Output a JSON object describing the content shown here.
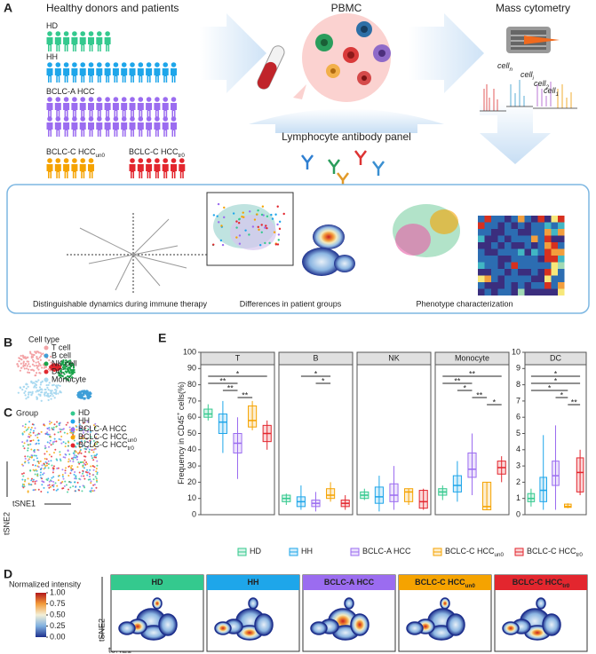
{
  "groups": [
    {
      "name": "HD",
      "color": "#34c98e"
    },
    {
      "name": "HH",
      "color": "#1ea6ea"
    },
    {
      "name": "BCLC-A HCC",
      "color": "#9b6cf0"
    },
    {
      "name": "BCLC-C HCC",
      "sub": "un0",
      "color": "#f5a300"
    },
    {
      "name": "BCLC-C HCC",
      "sub": "tr0",
      "color": "#e3262e"
    }
  ],
  "panel_a": {
    "label": "A",
    "cohort_title": "Healthy donors and patients",
    "pbmc": "PBMC",
    "mass_cytometry": "Mass cytometry",
    "antibody_panel": "Lymphocyte antibody panel",
    "cells": [
      {
        "text": "cell",
        "sub": "n"
      },
      {
        "text": "cell",
        "sub": "i"
      },
      {
        "text": "cell",
        "sub": "2"
      },
      {
        "text": "cell",
        "sub": "1"
      }
    ],
    "captions": [
      "Distinguishable dynamics during immune therapy",
      "Differences in patient groups",
      "Phenotype characterization"
    ]
  },
  "panel_b": {
    "label": "B",
    "legend_title": "Cell type",
    "items": [
      {
        "name": "T cell",
        "color": "#f3a3a6"
      },
      {
        "name": "B cell",
        "color": "#3f9fd8"
      },
      {
        "name": "NK cell",
        "color": "#1aa34a"
      },
      {
        "name": "DC",
        "color": "#e0282e"
      },
      {
        "name": "Monocyte",
        "color": "#a9d9f0"
      }
    ]
  },
  "panel_c": {
    "label": "C",
    "legend_title": "Group",
    "x_label": "tSNE1",
    "y_label": "tSNE2"
  },
  "panel_d": {
    "label": "D",
    "colorbar_title": "Normalized intensity",
    "colorbar_ticks": [
      {
        "value": 1,
        "label": "1.00"
      },
      {
        "value": 0.75,
        "label": "0.75"
      },
      {
        "value": 0.5,
        "label": "0.50"
      },
      {
        "value": 0.25,
        "label": "0.25"
      },
      {
        "value": 0,
        "label": "0.00"
      }
    ],
    "x_label": "tSNE1",
    "y_label": "tSNE2"
  },
  "panel_e": {
    "label": "E",
    "y_label": [
      "Frequency in CD45",
      "+",
      " cells(%)"
    ]
  },
  "chart_data": [
    {
      "type": "box",
      "title": "T",
      "ylim": [
        0,
        100
      ],
      "yticks": [
        0,
        10,
        20,
        30,
        40,
        50,
        60,
        70,
        80,
        90,
        100
      ],
      "boxes": [
        {
          "median": 62,
          "q1": 60,
          "q3": 65,
          "low": 58,
          "high": 68
        },
        {
          "median": 57,
          "q1": 50,
          "q3": 62,
          "low": 38,
          "high": 70
        },
        {
          "median": 44,
          "q1": 38,
          "q3": 50,
          "low": 22,
          "high": 60
        },
        {
          "median": 58,
          "q1": 54,
          "q3": 67,
          "low": 52,
          "high": 70
        },
        {
          "median": 50,
          "q1": 45,
          "q3": 55,
          "low": 40,
          "high": 58
        }
      ],
      "comparisons": [
        {
          "a": 0,
          "b": 4,
          "label": "*"
        },
        {
          "a": 0,
          "b": 2,
          "label": "**"
        },
        {
          "a": 1,
          "b": 2,
          "label": "**"
        },
        {
          "a": 2,
          "b": 3,
          "label": "**"
        }
      ]
    },
    {
      "type": "box",
      "title": "B",
      "ylim": [
        0,
        100
      ],
      "boxes": [
        {
          "median": 10,
          "q1": 8,
          "q3": 12,
          "low": 6,
          "high": 13
        },
        {
          "median": 8,
          "q1": 5,
          "q3": 11,
          "low": 3,
          "high": 18
        },
        {
          "median": 7,
          "q1": 5,
          "q3": 9,
          "low": 2,
          "high": 14
        },
        {
          "median": 12,
          "q1": 10,
          "q3": 16,
          "low": 8,
          "high": 20
        },
        {
          "median": 7,
          "q1": 5,
          "q3": 9,
          "low": 3,
          "high": 12
        }
      ],
      "comparisons": [
        {
          "a": 1,
          "b": 3,
          "label": "*"
        },
        {
          "a": 2,
          "b": 3,
          "label": "*"
        }
      ]
    },
    {
      "type": "box",
      "title": "NK",
      "ylim": [
        0,
        100
      ],
      "boxes": [
        {
          "median": 12,
          "q1": 10,
          "q3": 14,
          "low": 9,
          "high": 16
        },
        {
          "median": 11,
          "q1": 7,
          "q3": 17,
          "low": 2,
          "high": 24
        },
        {
          "median": 12,
          "q1": 8,
          "q3": 19,
          "low": 3,
          "high": 30
        },
        {
          "median": 14,
          "q1": 8,
          "q3": 16,
          "low": 6,
          "high": 16
        },
        {
          "median": 8,
          "q1": 4,
          "q3": 15,
          "low": 3,
          "high": 16
        }
      ],
      "comparisons": []
    },
    {
      "type": "box",
      "title": "Monocyte",
      "ylim": [
        0,
        100
      ],
      "boxes": [
        {
          "median": 14,
          "q1": 12,
          "q3": 16,
          "low": 9,
          "high": 18
        },
        {
          "median": 18,
          "q1": 14,
          "q3": 24,
          "low": 8,
          "high": 33
        },
        {
          "median": 28,
          "q1": 23,
          "q3": 38,
          "low": 12,
          "high": 50
        },
        {
          "median": 5,
          "q1": 3,
          "q3": 20,
          "low": 3,
          "high": 20
        },
        {
          "median": 29,
          "q1": 25,
          "q3": 33,
          "low": 20,
          "high": 36
        }
      ],
      "comparisons": [
        {
          "a": 0,
          "b": 4,
          "label": "**"
        },
        {
          "a": 0,
          "b": 2,
          "label": "**"
        },
        {
          "a": 1,
          "b": 2,
          "label": "*"
        },
        {
          "a": 2,
          "b": 3,
          "label": "**"
        },
        {
          "a": 3,
          "b": 4,
          "label": "*"
        }
      ]
    },
    {
      "type": "box",
      "title": "DC",
      "ylim": [
        0,
        10
      ],
      "yticks": [
        0,
        1,
        2,
        3,
        4,
        5,
        6,
        7,
        8,
        9,
        10
      ],
      "boxes": [
        {
          "median": 1,
          "q1": 0.8,
          "q3": 1.3,
          "low": 0.5,
          "high": 1.6
        },
        {
          "median": 1.5,
          "q1": 0.8,
          "q3": 2.3,
          "low": 0.3,
          "high": 4.9
        },
        {
          "median": 2.4,
          "q1": 1.8,
          "q3": 3.3,
          "low": 0.3,
          "high": 5.5
        },
        {
          "median": 0.5,
          "q1": 0.45,
          "q3": 0.65,
          "low": 0.4,
          "high": 0.7
        },
        {
          "median": 2.6,
          "q1": 1.4,
          "q3": 3.5,
          "low": 1.2,
          "high": 4
        }
      ],
      "comparisons": [
        {
          "a": 0,
          "b": 4,
          "label": "*"
        },
        {
          "a": 0,
          "b": 4,
          "label": "*"
        },
        {
          "a": 0,
          "b": 3,
          "label": "*"
        },
        {
          "a": 2,
          "b": 3,
          "label": "*"
        },
        {
          "a": 3,
          "b": 4,
          "label": "**"
        }
      ]
    }
  ]
}
